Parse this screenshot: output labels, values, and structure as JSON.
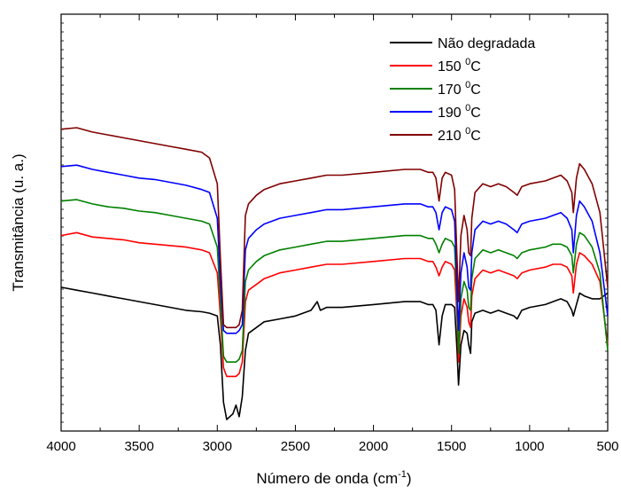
{
  "chart_data": {
    "type": "line",
    "title": "",
    "xlabel": "Número de onda (cm",
    "xlabel_sup": "-1",
    "xlabel_suffix": ")",
    "ylabel": "Transmitância (u. a.)",
    "xlim": [
      4000,
      500
    ],
    "x_reversed": true,
    "y_ticks_labeled": false,
    "xticks": [
      "4000",
      "3500",
      "3000",
      "2500",
      "2000",
      "1500",
      "1000",
      "500"
    ],
    "legend_position": "top-right",
    "series": [
      {
        "name": "Não degradada",
        "name_sup": "",
        "name_suffix": "",
        "color": "#000000",
        "x": [
          4000,
          3900,
          3800,
          3700,
          3600,
          3500,
          3400,
          3300,
          3200,
          3100,
          3050,
          3000,
          2980,
          2960,
          2940,
          2920,
          2900,
          2880,
          2860,
          2840,
          2820,
          2800,
          2750,
          2700,
          2600,
          2500,
          2400,
          2360,
          2340,
          2300,
          2200,
          2000,
          1800,
          1700,
          1650,
          1620,
          1600,
          1580,
          1560,
          1540,
          1500,
          1480,
          1465,
          1455,
          1440,
          1420,
          1400,
          1390,
          1378,
          1370,
          1350,
          1300,
          1250,
          1200,
          1150,
          1100,
          1080,
          1050,
          1000,
          900,
          850,
          800,
          760,
          730,
          720,
          700,
          680,
          650,
          600,
          550,
          500
        ],
        "y": [
          0.5,
          0.49,
          0.48,
          0.47,
          0.46,
          0.45,
          0.44,
          0.43,
          0.42,
          0.415,
          0.41,
          0.4,
          0.3,
          0.1,
          0.04,
          0.05,
          0.06,
          0.09,
          0.05,
          0.12,
          0.28,
          0.34,
          0.36,
          0.38,
          0.39,
          0.4,
          0.42,
          0.45,
          0.42,
          0.43,
          0.43,
          0.44,
          0.45,
          0.45,
          0.44,
          0.44,
          0.42,
          0.3,
          0.4,
          0.44,
          0.44,
          0.43,
          0.28,
          0.16,
          0.3,
          0.35,
          0.34,
          0.3,
          0.27,
          0.38,
          0.41,
          0.42,
          0.41,
          0.42,
          0.41,
          0.4,
          0.39,
          0.42,
          0.43,
          0.44,
          0.45,
          0.46,
          0.45,
          0.42,
          0.4,
          0.44,
          0.48,
          0.47,
          0.46,
          0.46,
          0.48
        ]
      },
      {
        "name": "150 ",
        "name_sup": "0",
        "name_suffix": "C",
        "color": "#ff0000",
        "x": [
          4000,
          3900,
          3800,
          3700,
          3600,
          3500,
          3400,
          3300,
          3200,
          3100,
          3050,
          3000,
          2980,
          2960,
          2940,
          2920,
          2900,
          2880,
          2860,
          2840,
          2820,
          2800,
          2750,
          2700,
          2600,
          2500,
          2400,
          2300,
          2200,
          2000,
          1800,
          1700,
          1650,
          1620,
          1600,
          1580,
          1560,
          1540,
          1500,
          1480,
          1465,
          1455,
          1440,
          1420,
          1400,
          1390,
          1378,
          1370,
          1350,
          1300,
          1250,
          1200,
          1150,
          1100,
          1080,
          1050,
          1000,
          900,
          850,
          800,
          760,
          730,
          720,
          700,
          680,
          650,
          600,
          550,
          500
        ],
        "y": [
          0.68,
          0.69,
          0.675,
          0.67,
          0.665,
          0.655,
          0.65,
          0.645,
          0.64,
          0.63,
          0.62,
          0.55,
          0.4,
          0.22,
          0.19,
          0.19,
          0.19,
          0.19,
          0.2,
          0.24,
          0.45,
          0.49,
          0.51,
          0.53,
          0.55,
          0.56,
          0.57,
          0.58,
          0.58,
          0.59,
          0.6,
          0.6,
          0.59,
          0.59,
          0.57,
          0.54,
          0.57,
          0.59,
          0.58,
          0.56,
          0.4,
          0.24,
          0.4,
          0.46,
          0.43,
          0.38,
          0.36,
          0.47,
          0.53,
          0.56,
          0.55,
          0.56,
          0.55,
          0.54,
          0.53,
          0.55,
          0.56,
          0.57,
          0.58,
          0.58,
          0.57,
          0.54,
          0.48,
          0.58,
          0.62,
          0.61,
          0.58,
          0.52,
          0.3
        ]
      },
      {
        "name": "170 ",
        "name_sup": "0",
        "name_suffix": "C",
        "color": "#008000",
        "x": [
          4000,
          3900,
          3800,
          3700,
          3600,
          3500,
          3400,
          3300,
          3200,
          3100,
          3050,
          3000,
          2980,
          2960,
          2940,
          2920,
          2900,
          2880,
          2860,
          2840,
          2820,
          2800,
          2750,
          2700,
          2600,
          2500,
          2400,
          2300,
          2200,
          2000,
          1800,
          1700,
          1650,
          1620,
          1600,
          1580,
          1560,
          1540,
          1500,
          1480,
          1465,
          1455,
          1440,
          1420,
          1400,
          1390,
          1378,
          1370,
          1350,
          1300,
          1250,
          1200,
          1150,
          1100,
          1080,
          1050,
          1000,
          900,
          850,
          800,
          760,
          730,
          720,
          700,
          680,
          650,
          600,
          550,
          500
        ],
        "y": [
          0.8,
          0.805,
          0.79,
          0.78,
          0.775,
          0.765,
          0.76,
          0.75,
          0.74,
          0.73,
          0.72,
          0.64,
          0.45,
          0.26,
          0.24,
          0.24,
          0.24,
          0.24,
          0.25,
          0.28,
          0.52,
          0.56,
          0.59,
          0.61,
          0.63,
          0.64,
          0.65,
          0.66,
          0.66,
          0.67,
          0.68,
          0.68,
          0.67,
          0.67,
          0.65,
          0.62,
          0.65,
          0.67,
          0.66,
          0.64,
          0.45,
          0.27,
          0.46,
          0.52,
          0.49,
          0.43,
          0.42,
          0.53,
          0.6,
          0.63,
          0.62,
          0.63,
          0.62,
          0.61,
          0.6,
          0.62,
          0.63,
          0.64,
          0.65,
          0.65,
          0.64,
          0.61,
          0.55,
          0.65,
          0.69,
          0.68,
          0.64,
          0.55,
          0.28
        ]
      },
      {
        "name": "190 ",
        "name_sup": "0",
        "name_suffix": "C",
        "color": "#0000ff",
        "x": [
          4000,
          3900,
          3800,
          3700,
          3600,
          3500,
          3400,
          3300,
          3200,
          3100,
          3050,
          3000,
          2980,
          2960,
          2940,
          2920,
          2900,
          2880,
          2860,
          2840,
          2820,
          2800,
          2750,
          2700,
          2600,
          2500,
          2400,
          2300,
          2200,
          2000,
          1800,
          1700,
          1650,
          1620,
          1600,
          1580,
          1560,
          1540,
          1500,
          1480,
          1465,
          1455,
          1440,
          1420,
          1400,
          1390,
          1378,
          1370,
          1350,
          1300,
          1250,
          1200,
          1150,
          1100,
          1080,
          1050,
          1000,
          900,
          850,
          800,
          760,
          730,
          720,
          700,
          680,
          650,
          600,
          550,
          500
        ],
        "y": [
          0.92,
          0.925,
          0.91,
          0.9,
          0.89,
          0.88,
          0.875,
          0.865,
          0.855,
          0.84,
          0.83,
          0.74,
          0.52,
          0.35,
          0.34,
          0.34,
          0.34,
          0.34,
          0.35,
          0.37,
          0.63,
          0.67,
          0.7,
          0.72,
          0.74,
          0.75,
          0.76,
          0.77,
          0.77,
          0.78,
          0.79,
          0.79,
          0.78,
          0.78,
          0.76,
          0.7,
          0.76,
          0.78,
          0.77,
          0.73,
          0.5,
          0.35,
          0.55,
          0.62,
          0.57,
          0.5,
          0.49,
          0.62,
          0.7,
          0.73,
          0.72,
          0.73,
          0.72,
          0.7,
          0.69,
          0.72,
          0.73,
          0.74,
          0.75,
          0.76,
          0.74,
          0.7,
          0.62,
          0.75,
          0.8,
          0.78,
          0.73,
          0.62,
          0.4
        ]
      },
      {
        "name": "210 ",
        "name_sup": "0",
        "name_suffix": "C",
        "color": "#800000",
        "x": [
          4000,
          3900,
          3800,
          3700,
          3600,
          3500,
          3400,
          3300,
          3200,
          3100,
          3050,
          3000,
          2980,
          2960,
          2940,
          2920,
          2900,
          2880,
          2860,
          2840,
          2820,
          2800,
          2750,
          2700,
          2600,
          2500,
          2400,
          2300,
          2200,
          2000,
          1800,
          1700,
          1650,
          1620,
          1600,
          1580,
          1560,
          1540,
          1500,
          1480,
          1465,
          1455,
          1440,
          1420,
          1400,
          1390,
          1378,
          1370,
          1350,
          1300,
          1250,
          1200,
          1150,
          1100,
          1080,
          1050,
          1000,
          900,
          850,
          800,
          760,
          730,
          720,
          700,
          680,
          650,
          600,
          550,
          500
        ],
        "y": [
          1.05,
          1.055,
          1.04,
          1.03,
          1.02,
          1.01,
          1.0,
          0.99,
          0.98,
          0.97,
          0.95,
          0.86,
          0.6,
          0.37,
          0.36,
          0.36,
          0.36,
          0.36,
          0.37,
          0.42,
          0.75,
          0.79,
          0.82,
          0.84,
          0.86,
          0.87,
          0.88,
          0.89,
          0.89,
          0.9,
          0.91,
          0.91,
          0.9,
          0.9,
          0.88,
          0.8,
          0.88,
          0.9,
          0.89,
          0.84,
          0.6,
          0.45,
          0.68,
          0.75,
          0.7,
          0.62,
          0.61,
          0.74,
          0.83,
          0.86,
          0.85,
          0.86,
          0.85,
          0.83,
          0.82,
          0.85,
          0.86,
          0.87,
          0.88,
          0.89,
          0.87,
          0.83,
          0.76,
          0.88,
          0.93,
          0.91,
          0.86,
          0.76,
          0.5
        ]
      }
    ]
  }
}
